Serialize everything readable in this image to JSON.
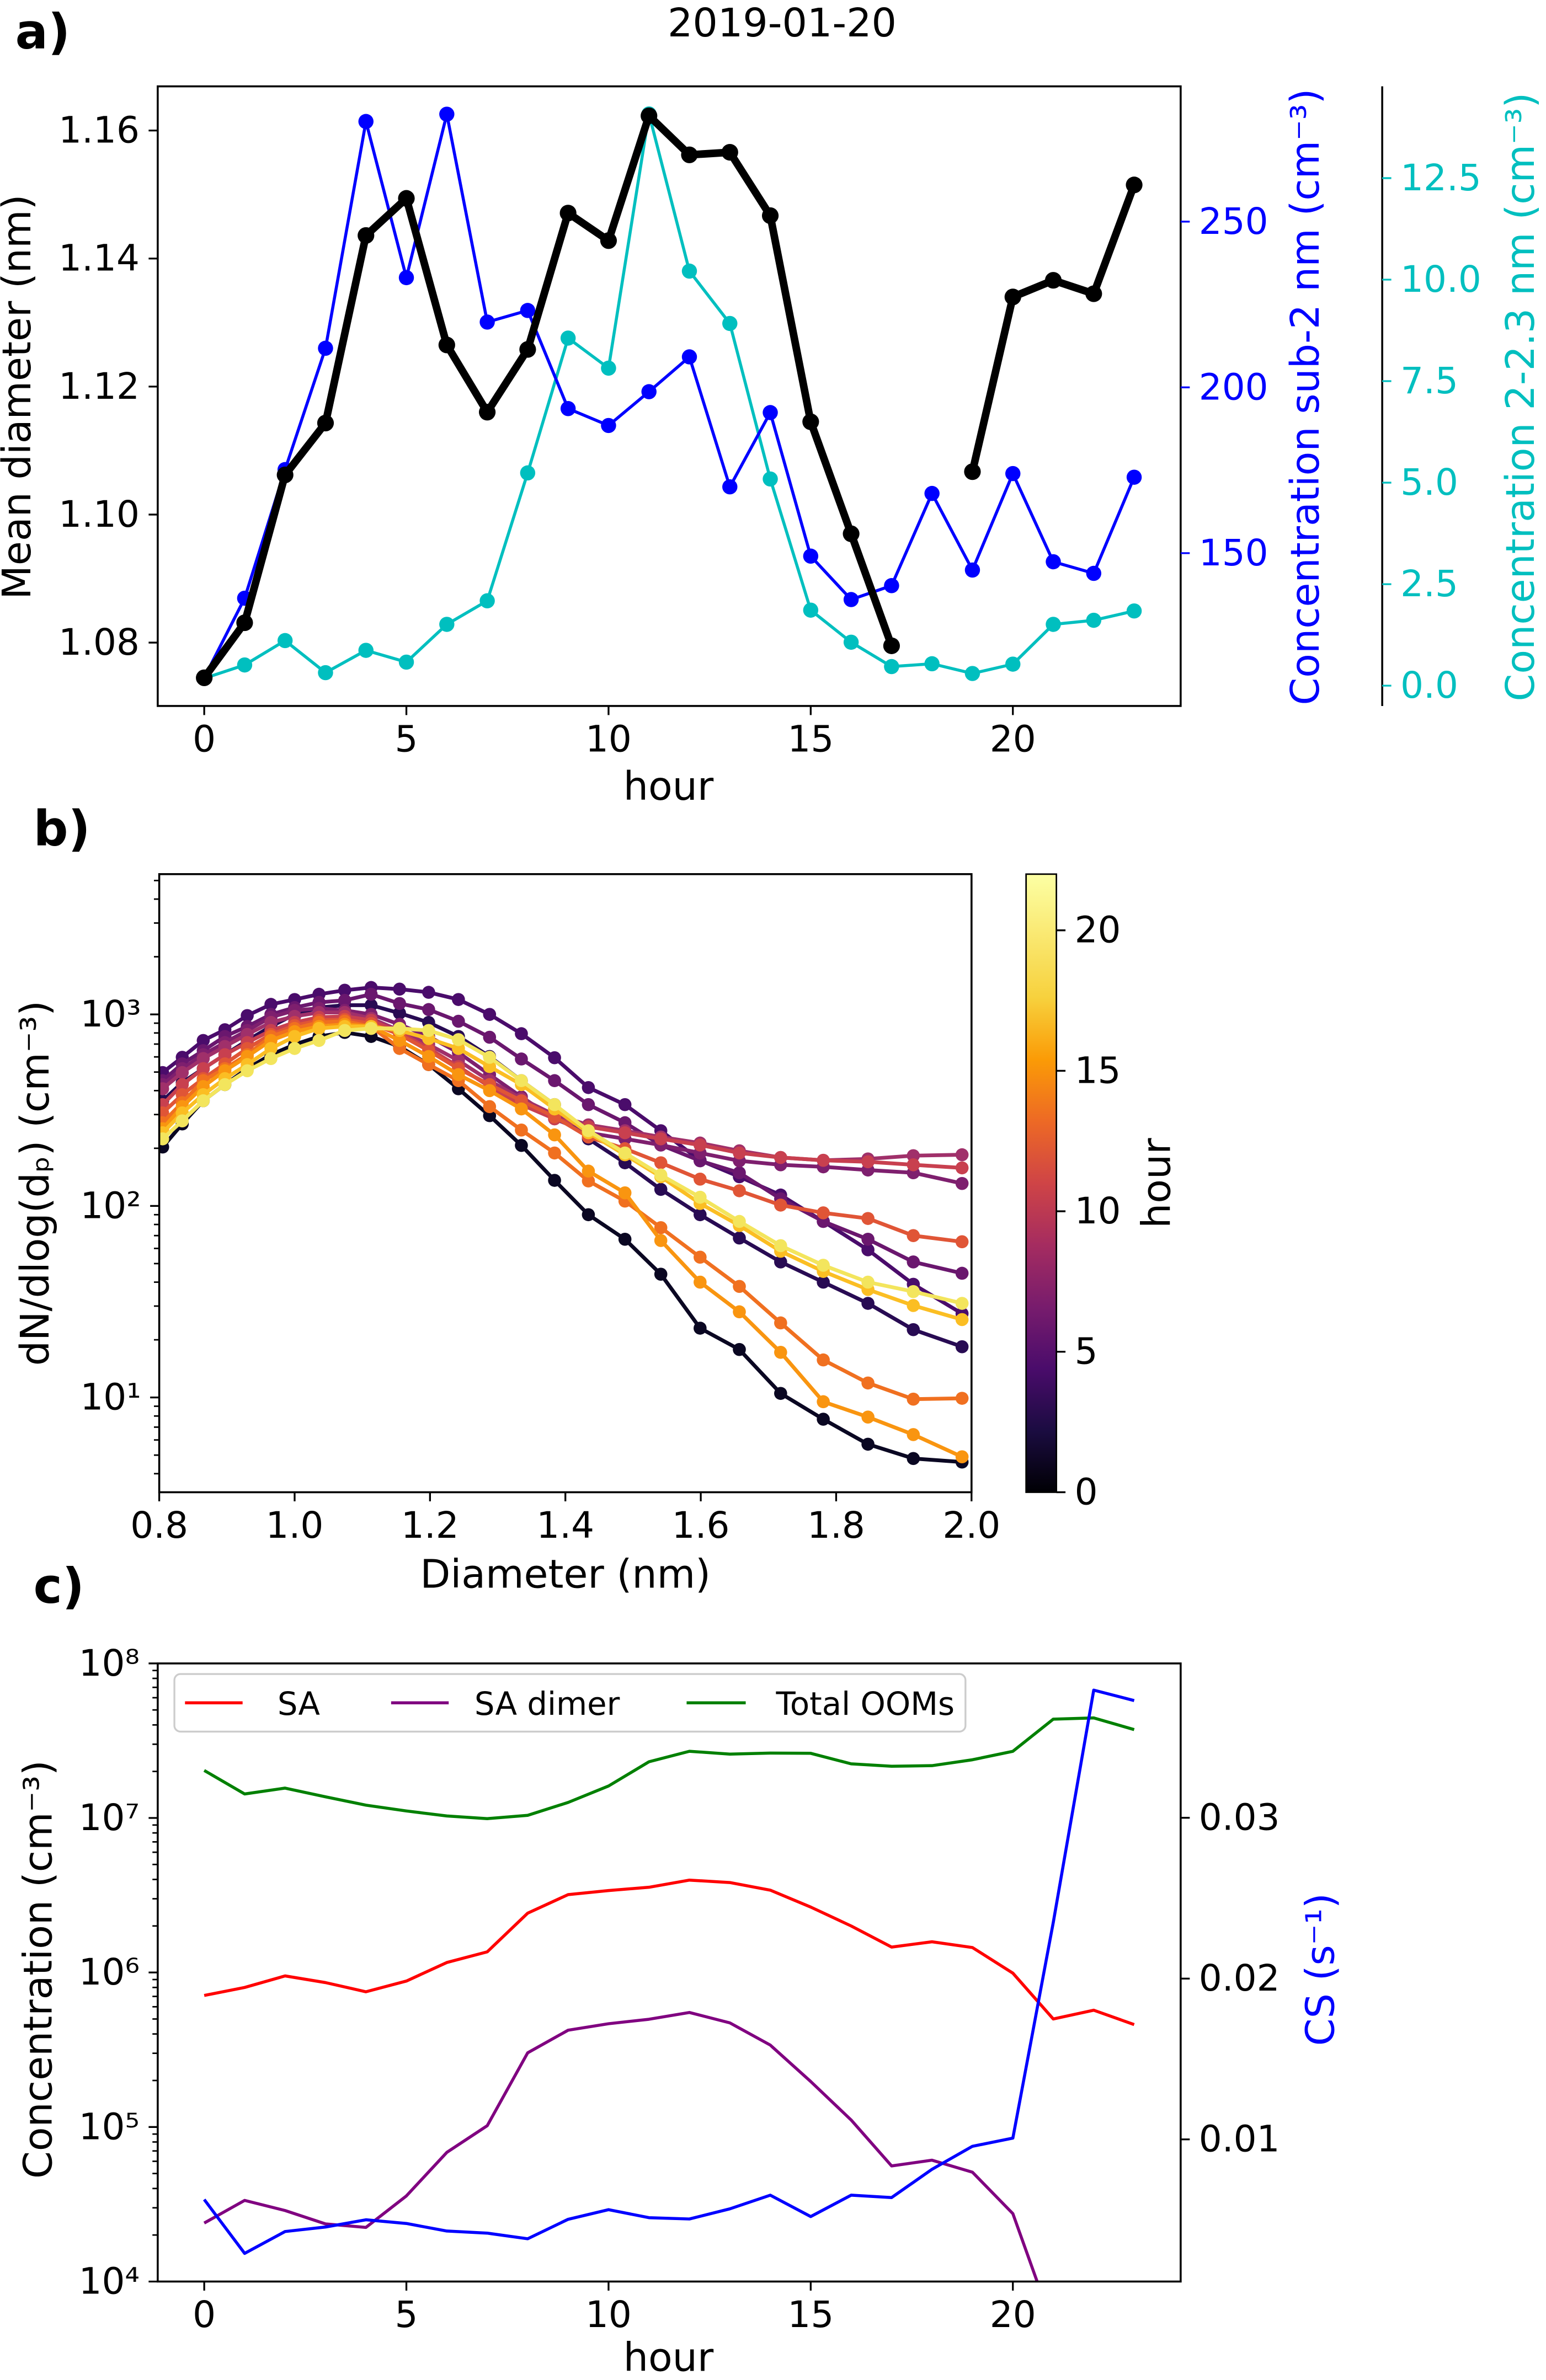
{
  "title": "2019-01-20",
  "chart_data": [
    {
      "panel_label": "a)",
      "type": "line",
      "xlabel": "hour",
      "xlim": [
        -1.15,
        24.15
      ],
      "xticks": [
        0,
        5,
        10,
        15,
        20
      ],
      "x": [
        0,
        1,
        2,
        3,
        4,
        5,
        6,
        7,
        8,
        9,
        10,
        11,
        12,
        13,
        14,
        15,
        16,
        17,
        18,
        19,
        20,
        21,
        22,
        23
      ],
      "axes": [
        {
          "ylabel": "Mean diameter (nm)",
          "color": "#000000",
          "side": "left",
          "ylim": [
            1.0701,
            1.1669
          ],
          "yticks": [
            1.08,
            1.1,
            1.12,
            1.14,
            1.16
          ],
          "ytick_labels": [
            "1.08",
            "1.10",
            "1.12",
            "1.14",
            "1.16"
          ]
        },
        {
          "ylabel": "Concentration sub-2 nm (cm⁻³)",
          "color": "#0000ff",
          "side": "right",
          "ylim": [
            103.9,
            290.8
          ],
          "yticks": [
            150,
            200,
            250
          ],
          "ytick_labels": [
            "150",
            "200",
            "250"
          ]
        },
        {
          "ylabel": "Concentration 2-2.3 nm (cm⁻³)",
          "color": "#00bfbf",
          "side": "right-offset",
          "ylim": [
            -0.5,
            14.76
          ],
          "yticks": [
            0,
            2.5,
            5,
            7.5,
            10,
            12.5
          ],
          "ytick_labels": [
            "0.0",
            "2.5",
            "5.0",
            "7.5",
            "10.0",
            "12.5"
          ]
        }
      ],
      "series": [
        {
          "axis": 0,
          "color": "#000000",
          "values": [
            1.0745,
            1.0831,
            1.1062,
            1.1143,
            1.1436,
            1.1494,
            1.1265,
            1.116,
            1.1258,
            1.1471,
            1.1428,
            1.1623,
            1.1562,
            1.1566,
            1.1467,
            1.1145,
            1.097,
            1.0795,
            null,
            1.1067,
            1.134,
            1.1366,
            1.1345,
            1.1515
          ]
        },
        {
          "axis": 1,
          "color": "#0000ff",
          "values": [
            112.4,
            136.4,
            175.2,
            211.8,
            280.2,
            233.1,
            282.4,
            219.7,
            223.2,
            193.6,
            188.5,
            198.7,
            209.2,
            170.0,
            192.4,
            149.1,
            136.0,
            140.2,
            168.0,
            144.9,
            174.0,
            147.4,
            143.9,
            172.9
          ]
        },
        {
          "axis": 2,
          "color": "#00bfbf",
          "values": [
            0.18,
            0.51,
            1.11,
            0.32,
            0.87,
            0.58,
            1.51,
            2.09,
            5.24,
            8.56,
            7.82,
            14.08,
            10.21,
            8.92,
            5.09,
            1.86,
            1.07,
            0.47,
            0.54,
            0.3,
            0.53,
            1.51,
            1.61,
            1.84
          ]
        }
      ]
    },
    {
      "panel_label": "b)",
      "type": "line",
      "xlabel": "Diameter (nm)",
      "ylabel": "dN/dlog(dₚ) (cm⁻³)",
      "xlim": [
        0.8,
        2.0
      ],
      "xticks": [
        0.8,
        1.0,
        1.2,
        1.4,
        1.6,
        1.8,
        2.0
      ],
      "xtick_labels": [
        "0.8",
        "1.0",
        "1.2",
        "1.4",
        "1.6",
        "1.8",
        "2.0"
      ],
      "yscale": "log",
      "ylim": [
        3.2,
        5400
      ],
      "yticks": [
        10,
        100,
        1000
      ],
      "ytick_labels": [
        "10¹",
        "10²",
        "10³"
      ],
      "colorbar": {
        "label": "hour",
        "colormap": "inferno",
        "range": [
          0,
          22
        ],
        "ticks": [
          0,
          5,
          10,
          15,
          20
        ],
        "tick_labels": [
          "0",
          "5",
          "10",
          "15",
          "20"
        ]
      },
      "x": [
        0.805,
        0.834,
        0.865,
        0.897,
        0.93,
        0.965,
        1.0,
        1.036,
        1.074,
        1.113,
        1.155,
        1.198,
        1.242,
        1.288,
        1.335,
        1.384,
        1.434,
        1.488,
        1.541,
        1.599,
        1.657,
        1.718,
        1.781,
        1.847,
        1.914,
        1.986
      ],
      "series": [
        {
          "hour": 0,
          "color": "#0a0722",
          "values": [
            203,
            268,
            354,
            430,
            521,
            616,
            696,
            767,
            805,
            767,
            680,
            547,
            409,
            296,
            207,
            136,
            90,
            67,
            44,
            23,
            17.8,
            10.5,
            7.7,
            5.7,
            4.8,
            4.6
          ]
        },
        {
          "hour": 2,
          "color": "#280b53",
          "values": [
            354,
            441,
            521,
            616,
            731,
            865,
            1000,
            1086,
            1117,
            1117,
            1015,
            908,
            767,
            603,
            451,
            338,
            224,
            168,
            122,
            90,
            68,
            51,
            40,
            31,
            22.6,
            18.4
          ]
        },
        {
          "hour": 4,
          "color": "#4a0c6b",
          "values": [
            497,
            597,
            731,
            832,
            986,
            1128,
            1196,
            1274,
            1337,
            1382,
            1355,
            1304,
            1196,
            1000,
            793,
            594,
            415,
            338,
            247,
            173,
            142,
            114,
            83,
            59,
            39,
            27.4
          ]
        },
        {
          "hour": 6,
          "color": "#6a176e",
          "values": [
            451,
            552,
            647,
            767,
            865,
            1000,
            1086,
            1156,
            1184,
            1274,
            1140,
            1060,
            921,
            760,
            585,
            451,
            338,
            272,
            208,
            172,
            149,
            109,
            83,
            67,
            51,
            44.5
          ]
        },
        {
          "hour": 8,
          "color": "#7e1f6e",
          "values": [
            430,
            521,
            616,
            713,
            824,
            966,
            1050,
            1075,
            1050,
            1000,
            887,
            767,
            632,
            485,
            371,
            285,
            241,
            224,
            208,
            189,
            172,
            164,
            160,
            154,
            149,
            131
          ]
        },
        {
          "hour": 10,
          "color": "#a0306a",
          "values": [
            409,
            497,
            588,
            680,
            786,
            908,
            977,
            1024,
            1024,
            953,
            824,
            696,
            574,
            451,
            363,
            299,
            265,
            247,
            229,
            213,
            194,
            179,
            173,
            176,
            183,
            185
          ]
        },
        {
          "hour": 12,
          "color": "#c8404f",
          "values": [
            338,
            430,
            521,
            616,
            713,
            824,
            908,
            966,
            977,
            931,
            805,
            664,
            534,
            420,
            338,
            285,
            259,
            241,
            224,
            208,
            189,
            179,
            173,
            170,
            164,
            158
          ]
        },
        {
          "hour": 14,
          "color": "#e05536",
          "values": [
            306,
            381,
            462,
            552,
            664,
            786,
            874,
            931,
            940,
            895,
            786,
            647,
            521,
            430,
            354,
            292,
            229,
            199,
            168,
            138,
            120,
            101,
            92,
            86,
            70,
            65
          ]
        },
        {
          "hour": 16,
          "color": "#f07020",
          "values": [
            272,
            346,
            451,
            521,
            616,
            767,
            845,
            908,
            921,
            865,
            664,
            547,
            451,
            330,
            249,
            189,
            135,
            106,
            77,
            54,
            38,
            24.5,
            15.7,
            11.9,
            9.8,
            9.9
          ]
        },
        {
          "hour": 18,
          "color": "#f99510",
          "values": [
            253,
            330,
            420,
            508,
            603,
            731,
            813,
            865,
            887,
            865,
            731,
            603,
            485,
            400,
            321,
            235,
            152,
            117,
            66,
            40,
            28,
            17.2,
            9.5,
            7.9,
            6.4,
            4.9
          ]
        },
        {
          "hour": 20,
          "color": "#fbbe23",
          "values": [
            241,
            306,
            381,
            462,
            547,
            664,
            767,
            845,
            865,
            865,
            824,
            748,
            664,
            534,
            430,
            321,
            241,
            185,
            142,
            103,
            79,
            58,
            45.5,
            36.6,
            30.2,
            25.5
          ]
        },
        {
          "hour": 22,
          "color": "#f3e55d",
          "values": [
            224,
            278,
            354,
            430,
            508,
            588,
            664,
            731,
            824,
            845,
            845,
            824,
            738,
            597,
            451,
            338,
            247,
            189,
            145,
            111,
            83,
            62,
            49,
            40,
            35.7,
            31
          ]
        }
      ]
    },
    {
      "panel_label": "c)",
      "type": "line",
      "xlabel": "hour",
      "xlim": [
        -1.15,
        24.15
      ],
      "xticks": [
        0,
        5,
        10,
        15,
        20
      ],
      "x": [
        0,
        1,
        2,
        3,
        4,
        5,
        6,
        7,
        8,
        9,
        10,
        11,
        12,
        13,
        14,
        15,
        16,
        17,
        18,
        19,
        20,
        21,
        22,
        23
      ],
      "axes": [
        {
          "ylabel": "Concentration (cm⁻³)",
          "color": "#000000",
          "side": "left",
          "yscale": "log",
          "ylim": [
            10000,
            100000000
          ],
          "yticks": [
            10000,
            100000,
            1000000,
            10000000,
            100000000
          ],
          "ytick_labels": [
            "10⁴",
            "10⁵",
            "10⁶",
            "10⁷",
            "10⁸"
          ]
        },
        {
          "ylabel": "CS (s⁻¹)",
          "color": "#0000ff",
          "side": "right",
          "ylim": [
            0.00116,
            0.0396
          ],
          "yticks": [
            0.01,
            0.02,
            0.03
          ],
          "ytick_labels": [
            "0.01",
            "0.02",
            "0.03"
          ]
        }
      ],
      "legend": {
        "position": "top-left"
      },
      "series": [
        {
          "name": "SA",
          "axis": 0,
          "color": "#ff0000",
          "values": [
            710000.0,
            800000.0,
            950000.0,
            860000.0,
            750000.0,
            880000.0,
            1160000.0,
            1360000.0,
            2420000.0,
            3190000.0,
            3390000.0,
            3560000.0,
            3960000.0,
            3820000.0,
            3410000.0,
            2650000.0,
            2000000.0,
            1460000.0,
            1580000.0,
            1450000.0,
            990000.0,
            500000.0,
            570000.0,
            460000.0
          ]
        },
        {
          "name": "SA dimer",
          "axis": 0,
          "color": "#800080",
          "values": [
            23900.0,
            33500.0,
            28800.0,
            23600.0,
            22400.0,
            35800.0,
            68500.0,
            102000.0,
            302000.0,
            423000.0,
            466000.0,
            498000.0,
            551000.0,
            472000.0,
            339000.0,
            197000.0,
            111000.0,
            56000.0,
            61000.0,
            51000.0,
            27500.0,
            5100.0,
            null,
            null
          ]
        },
        {
          "name": "Total OOMs",
          "axis": 0,
          "color": "#008000",
          "values": [
            20300000.0,
            14300000.0,
            15600000.0,
            13700000.0,
            12100000.0,
            11100000.0,
            10300000.0,
            9900000.0,
            10400000.0,
            12600000.0,
            16100000.0,
            23100000.0,
            27000000.0,
            25900000.0,
            26300000.0,
            26200000.0,
            22400000.0,
            21600000.0,
            21800000.0,
            23800000.0,
            27000000.0,
            43600000.0,
            44400000.0,
            37300000.0
          ]
        },
        {
          "axis": 1,
          "color": "#0000ff",
          "values": [
            0.00626,
            0.00291,
            0.00427,
            0.00455,
            0.005,
            0.00477,
            0.0043,
            0.00417,
            0.00382,
            0.00503,
            0.00563,
            0.00513,
            0.00505,
            0.00568,
            0.00653,
            0.0052,
            0.00653,
            0.00638,
            0.00814,
            0.00957,
            0.01008,
            0.0235,
            0.03794,
            0.03729
          ]
        }
      ]
    }
  ]
}
